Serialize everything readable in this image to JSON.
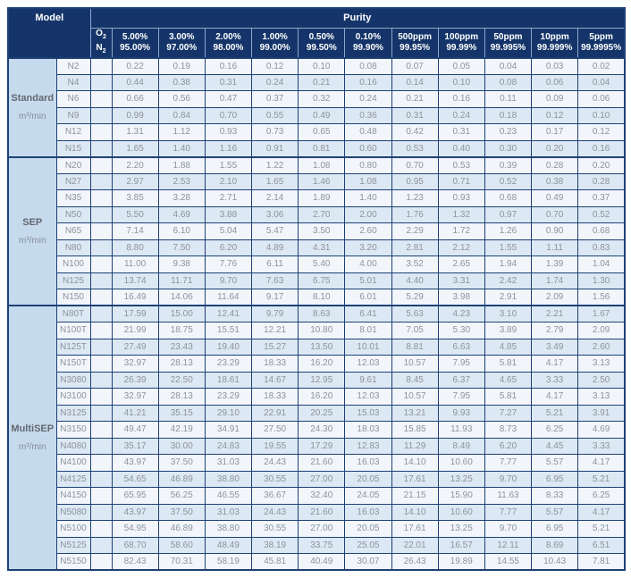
{
  "header": {
    "model_label": "Model",
    "purity_label": "Purity",
    "gas": {
      "oxygen_symbol": "O",
      "nitrogen_symbol": "N",
      "subscript": "2"
    },
    "purity_columns": [
      {
        "o2": "5.00%",
        "n2": "95.00%"
      },
      {
        "o2": "3.00%",
        "n2": "97.00%"
      },
      {
        "o2": "2.00%",
        "n2": "98.00%"
      },
      {
        "o2": "1.00%",
        "n2": "99.00%"
      },
      {
        "o2": "0.50%",
        "n2": "99.50%"
      },
      {
        "o2": "0.10%",
        "n2": "99.90%"
      },
      {
        "o2": "500ppm",
        "n2": "99.95%"
      },
      {
        "o2": "100ppm",
        "n2": "99.99%"
      },
      {
        "o2": "50ppm",
        "n2": "99.995%"
      },
      {
        "o2": "10ppm",
        "n2": "99.999%"
      },
      {
        "o2": "5ppm",
        "n2": "99.9995%"
      }
    ]
  },
  "sections": [
    {
      "name": "Standard",
      "unit": "m³/min",
      "rows": [
        {
          "model": "N2",
          "values": [
            "0.22",
            "0.19",
            "0.16",
            "0.12",
            "0.10",
            "0.08",
            "0.07",
            "0.05",
            "0.04",
            "0.03",
            "0.02"
          ]
        },
        {
          "model": "N4",
          "values": [
            "0.44",
            "0.38",
            "0.31",
            "0.24",
            "0.21",
            "0.16",
            "0.14",
            "0.10",
            "0.08",
            "0.06",
            "0.04"
          ]
        },
        {
          "model": "N6",
          "values": [
            "0.66",
            "0.56",
            "0.47",
            "0.37",
            "0.32",
            "0.24",
            "0.21",
            "0.16",
            "0.11",
            "0.09",
            "0.06"
          ]
        },
        {
          "model": "N9",
          "values": [
            "0.99",
            "0.84",
            "0.70",
            "0.55",
            "0.49",
            "0.36",
            "0.31",
            "0.24",
            "0.18",
            "0.12",
            "0.10"
          ]
        },
        {
          "model": "N12",
          "values": [
            "1.31",
            "1.12",
            "0.93",
            "0.73",
            "0.65",
            "0.48",
            "0.42",
            "0.31",
            "0.23",
            "0.17",
            "0.12"
          ]
        },
        {
          "model": "N15",
          "values": [
            "1.65",
            "1.40",
            "1.16",
            "0.91",
            "0.81",
            "0.60",
            "0.53",
            "0.40",
            "0.30",
            "0.20",
            "0.16"
          ]
        }
      ]
    },
    {
      "name": "SEP",
      "unit": "m³/min",
      "rows": [
        {
          "model": "N20",
          "values": [
            "2.20",
            "1.88",
            "1.55",
            "1.22",
            "1.08",
            "0.80",
            "0.70",
            "0.53",
            "0.39",
            "0.28",
            "0.20"
          ]
        },
        {
          "model": "N27",
          "values": [
            "2.97",
            "2.53",
            "2.10",
            "1.65",
            "1.46",
            "1.08",
            "0.95",
            "0.71",
            "0.52",
            "0.38",
            "0.28"
          ]
        },
        {
          "model": "N35",
          "values": [
            "3.85",
            "3.28",
            "2.71",
            "2.14",
            "1.89",
            "1.40",
            "1.23",
            "0.93",
            "0.68",
            "0.49",
            "0.37"
          ]
        },
        {
          "model": "N50",
          "values": [
            "5.50",
            "4.69",
            "3.88",
            "3.06",
            "2.70",
            "2.00",
            "1.76",
            "1.32",
            "0.97",
            "0.70",
            "0.52"
          ]
        },
        {
          "model": "N65",
          "values": [
            "7.14",
            "6.10",
            "5.04",
            "5.47",
            "3.50",
            "2.60",
            "2.29",
            "1.72",
            "1.26",
            "0.90",
            "0.68"
          ]
        },
        {
          "model": "N80",
          "values": [
            "8.80",
            "7.50",
            "6.20",
            "4.89",
            "4.31",
            "3.20",
            "2.81",
            "2.12",
            "1.55",
            "1.11",
            "0.83"
          ]
        },
        {
          "model": "N100",
          "values": [
            "11.00",
            "9.38",
            "7.76",
            "6.11",
            "5.40",
            "4.00",
            "3.52",
            "2.65",
            "1.94",
            "1.39",
            "1.04"
          ]
        },
        {
          "model": "N125",
          "values": [
            "13.74",
            "11.71",
            "9.70",
            "7.63",
            "6.75",
            "5.01",
            "4.40",
            "3.31",
            "2.42",
            "1.74",
            "1.30"
          ]
        },
        {
          "model": "N150",
          "values": [
            "16.49",
            "14.06",
            "11.64",
            "9.17",
            "8.10",
            "6.01",
            "5.29",
            "3.98",
            "2.91",
            "2.09",
            "1.56"
          ]
        }
      ]
    },
    {
      "name": "MultiSEP",
      "unit": "m³/min",
      "rows": [
        {
          "model": "N80T",
          "values": [
            "17.59",
            "15.00",
            "12.41",
            "9.79",
            "8.63",
            "6.41",
            "5.63",
            "4.23",
            "3.10",
            "2.21",
            "1.67"
          ]
        },
        {
          "model": "N100T",
          "values": [
            "21.99",
            "18.75",
            "15.51",
            "12.21",
            "10.80",
            "8.01",
            "7.05",
            "5.30",
            "3.89",
            "2.79",
            "2.09"
          ]
        },
        {
          "model": "N125T",
          "values": [
            "27.49",
            "23.43",
            "19.40",
            "15.27",
            "13.50",
            "10.01",
            "8.81",
            "6.63",
            "4.85",
            "3.49",
            "2.60"
          ]
        },
        {
          "model": "N150T",
          "values": [
            "32.97",
            "28.13",
            "23.29",
            "18.33",
            "16.20",
            "12.03",
            "10.57",
            "7.95",
            "5.81",
            "4.17",
            "3.13"
          ]
        },
        {
          "model": "N3080",
          "values": [
            "26.39",
            "22.50",
            "18.61",
            "14.67",
            "12.95",
            "9.61",
            "8.45",
            "6.37",
            "4.65",
            "3.33",
            "2.50"
          ]
        },
        {
          "model": "N3100",
          "values": [
            "32.97",
            "28.13",
            "23.29",
            "18.33",
            "16.20",
            "12.03",
            "10.57",
            "7.95",
            "5.81",
            "4.17",
            "3.13"
          ]
        },
        {
          "model": "N3125",
          "values": [
            "41.21",
            "35.15",
            "29.10",
            "22.91",
            "20.25",
            "15.03",
            "13.21",
            "9.93",
            "7.27",
            "5.21",
            "3.91"
          ]
        },
        {
          "model": "N3150",
          "values": [
            "49.47",
            "42.19",
            "34.91",
            "27.50",
            "24.30",
            "18.03",
            "15.85",
            "11.93",
            "8.73",
            "6.25",
            "4.69"
          ]
        },
        {
          "model": "N4080",
          "values": [
            "35.17",
            "30.00",
            "24.83",
            "19.55",
            "17.29",
            "12.83",
            "11.29",
            "8.49",
            "6.20",
            "4.45",
            "3.33"
          ]
        },
        {
          "model": "N4100",
          "values": [
            "43.97",
            "37.50",
            "31.03",
            "24.43",
            "21.60",
            "16.03",
            "14.10",
            "10.60",
            "7.77",
            "5.57",
            "4.17"
          ]
        },
        {
          "model": "N4125",
          "values": [
            "54.65",
            "46.89",
            "38.80",
            "30.55",
            "27.00",
            "20.05",
            "17.61",
            "13.25",
            "9.70",
            "6.95",
            "5.21"
          ]
        },
        {
          "model": "N4150",
          "values": [
            "65.95",
            "56.25",
            "46.55",
            "36.67",
            "32.40",
            "24.05",
            "21.15",
            "15.90",
            "11.63",
            "8.33",
            "6.25"
          ]
        },
        {
          "model": "N5080",
          "values": [
            "43.97",
            "37.50",
            "31.03",
            "24.43",
            "21.60",
            "16.03",
            "14.10",
            "10.60",
            "7.77",
            "5.57",
            "4.17"
          ]
        },
        {
          "model": "N5100",
          "values": [
            "54.95",
            "46.89",
            "38.80",
            "30.55",
            "27.00",
            "20.05",
            "17.61",
            "13.25",
            "9.70",
            "6.95",
            "5.21"
          ]
        },
        {
          "model": "N5125",
          "values": [
            "68.70",
            "58.60",
            "48.49",
            "38.19",
            "33.75",
            "25.05",
            "22.01",
            "16.57",
            "12.11",
            "8.69",
            "6.51"
          ]
        },
        {
          "model": "N5150",
          "values": [
            "82.43",
            "70.31",
            "58.19",
            "45.81",
            "40.49",
            "30.07",
            "26.43",
            "19.89",
            "14.55",
            "10.43",
            "7.81"
          ]
        }
      ]
    }
  ],
  "colors": {
    "header_navy": "#15356a",
    "grid_border": "#1d4175",
    "group_cell_bg": "#c6daee",
    "row_light": "#f2f6fb",
    "row_shaded": "#dce8f4",
    "value_text": "#8d939c"
  }
}
